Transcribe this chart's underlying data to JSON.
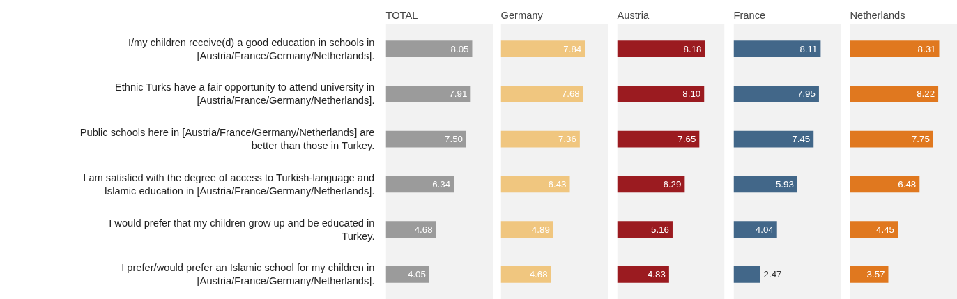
{
  "chart_data": [
    {
      "type": "bar",
      "orientation": "horizontal",
      "title": "TOTAL",
      "categories": [
        "I/my children receive(d) a good education in schools in [Austria/France/Germany/Netherlands].",
        "Ethnic Turks have a fair opportunity to attend university in [Austria/France/Germany/Netherlands].",
        "Public schools here in [Austria/France/Germany/Netherlands] are better than those in Turkey.",
        "I am satisfied with the degree of access to Turkish-language and Islamic education in [Austria/France/Germany/Netherlands].",
        "I would prefer that my children grow up and be educated in Turkey.",
        "I prefer/would prefer an Islamic school for my children in [Austria/France/Germany/Netherlands]."
      ],
      "values": [
        8.05,
        7.91,
        7.5,
        6.34,
        4.68,
        4.05
      ],
      "value_labels": [
        "8.05",
        "7.91",
        "7.50",
        "6.34",
        "4.68",
        "4.05"
      ],
      "color": "#9b9b9b",
      "xlim": [
        0,
        10
      ],
      "bands": [
        {
          "axis": "x",
          "from": 0,
          "to": 10,
          "color": "#f2f2f2"
        }
      ],
      "tick_labels": "y"
    },
    {
      "type": "bar",
      "orientation": "horizontal",
      "title": "Germany",
      "categories": [
        "I/my children receive(d) a good education in schools in [Austria/France/Germany/Netherlands].",
        "Ethnic Turks have a fair opportunity to attend university in [Austria/France/Germany/Netherlands].",
        "Public schools here in [Austria/France/Germany/Netherlands] are better than those in Turkey.",
        "I am satisfied with the degree of access to Turkish-language and Islamic education in [Austria/France/Germany/Netherlands].",
        "I would prefer that my children grow up and be educated in Turkey.",
        "I prefer/would prefer an Islamic school for my children in [Austria/France/Germany/Netherlands]."
      ],
      "values": [
        7.84,
        7.68,
        7.36,
        6.43,
        4.89,
        4.68
      ],
      "value_labels": [
        "7.84",
        "7.68",
        "7.36",
        "6.43",
        "4.89",
        "4.68"
      ],
      "color": "#f0c67f",
      "xlim": [
        0,
        10
      ],
      "bands": [
        {
          "axis": "x",
          "from": 0,
          "to": 10,
          "color": "#f2f2f2"
        }
      ],
      "tick_labels": false
    },
    {
      "type": "bar",
      "orientation": "horizontal",
      "title": "Austria",
      "categories": [
        "I/my children receive(d) a good education in schools in [Austria/France/Germany/Netherlands].",
        "Ethnic Turks have a fair opportunity to attend university in [Austria/France/Germany/Netherlands].",
        "Public schools here in [Austria/France/Germany/Netherlands] are better than those in Turkey.",
        "I am satisfied with the degree of access to Turkish-language and Islamic education in [Austria/France/Germany/Netherlands].",
        "I would prefer that my children grow up and be educated in Turkey.",
        "I prefer/would prefer an Islamic school for my children in [Austria/France/Germany/Netherlands]."
      ],
      "values": [
        8.18,
        8.1,
        7.65,
        6.29,
        5.16,
        4.83
      ],
      "value_labels": [
        "8.18",
        "8.10",
        "7.65",
        "6.29",
        "5.16",
        "4.83"
      ],
      "color": "#9b1b20",
      "xlim": [
        0,
        10
      ],
      "bands": [
        {
          "axis": "x",
          "from": 0,
          "to": 10,
          "color": "#f2f2f2"
        }
      ],
      "tick_labels": false
    },
    {
      "type": "bar",
      "orientation": "horizontal",
      "title": "France",
      "categories": [
        "I/my children receive(d) a good education in schools in [Austria/France/Germany/Netherlands].",
        "Ethnic Turks have a fair opportunity to attend university in [Austria/France/Germany/Netherlands].",
        "Public schools here in [Austria/France/Germany/Netherlands] are better than those in Turkey.",
        "I am satisfied with the degree of access to Turkish-language and Islamic education in [Austria/France/Germany/Netherlands].",
        "I would prefer that my children grow up and be educated in Turkey.",
        "I prefer/would prefer an Islamic school for my children in [Austria/France/Germany/Netherlands]."
      ],
      "values": [
        8.11,
        7.95,
        7.45,
        5.93,
        4.04,
        2.47
      ],
      "value_labels": [
        "8.11",
        "7.95",
        "7.45",
        "5.93",
        "4.04",
        "2.47"
      ],
      "color": "#426789",
      "xlim": [
        0,
        10
      ],
      "bands": [
        {
          "axis": "x",
          "from": 0,
          "to": 10,
          "color": "#f2f2f2"
        }
      ],
      "tick_labels": false
    },
    {
      "type": "bar",
      "orientation": "horizontal",
      "title": "Netherlands",
      "categories": [
        "I/my children receive(d) a good education in schools in [Austria/France/Germany/Netherlands].",
        "Ethnic Turks have a fair opportunity to attend university in [Austria/France/Germany/Netherlands].",
        "Public schools here in [Austria/France/Germany/Netherlands] are better than those in Turkey.",
        "I am satisfied with the degree of access to Turkish-language and Islamic education in [Austria/France/Germany/Netherlands].",
        "I would prefer that my children grow up and be educated in Turkey.",
        "I prefer/would prefer an Islamic school for my children in [Austria/France/Germany/Netherlands]."
      ],
      "values": [
        8.31,
        8.22,
        7.75,
        6.48,
        4.45,
        3.57
      ],
      "value_labels": [
        "8.31",
        "8.22",
        "7.75",
        "6.48",
        "4.45",
        "3.57"
      ],
      "color": "#e0781f",
      "xlim": [
        0,
        10
      ],
      "bands": [
        {
          "axis": "x",
          "from": 0,
          "to": 10,
          "color": "#f2f2f2"
        }
      ],
      "tick_labels": false
    }
  ]
}
